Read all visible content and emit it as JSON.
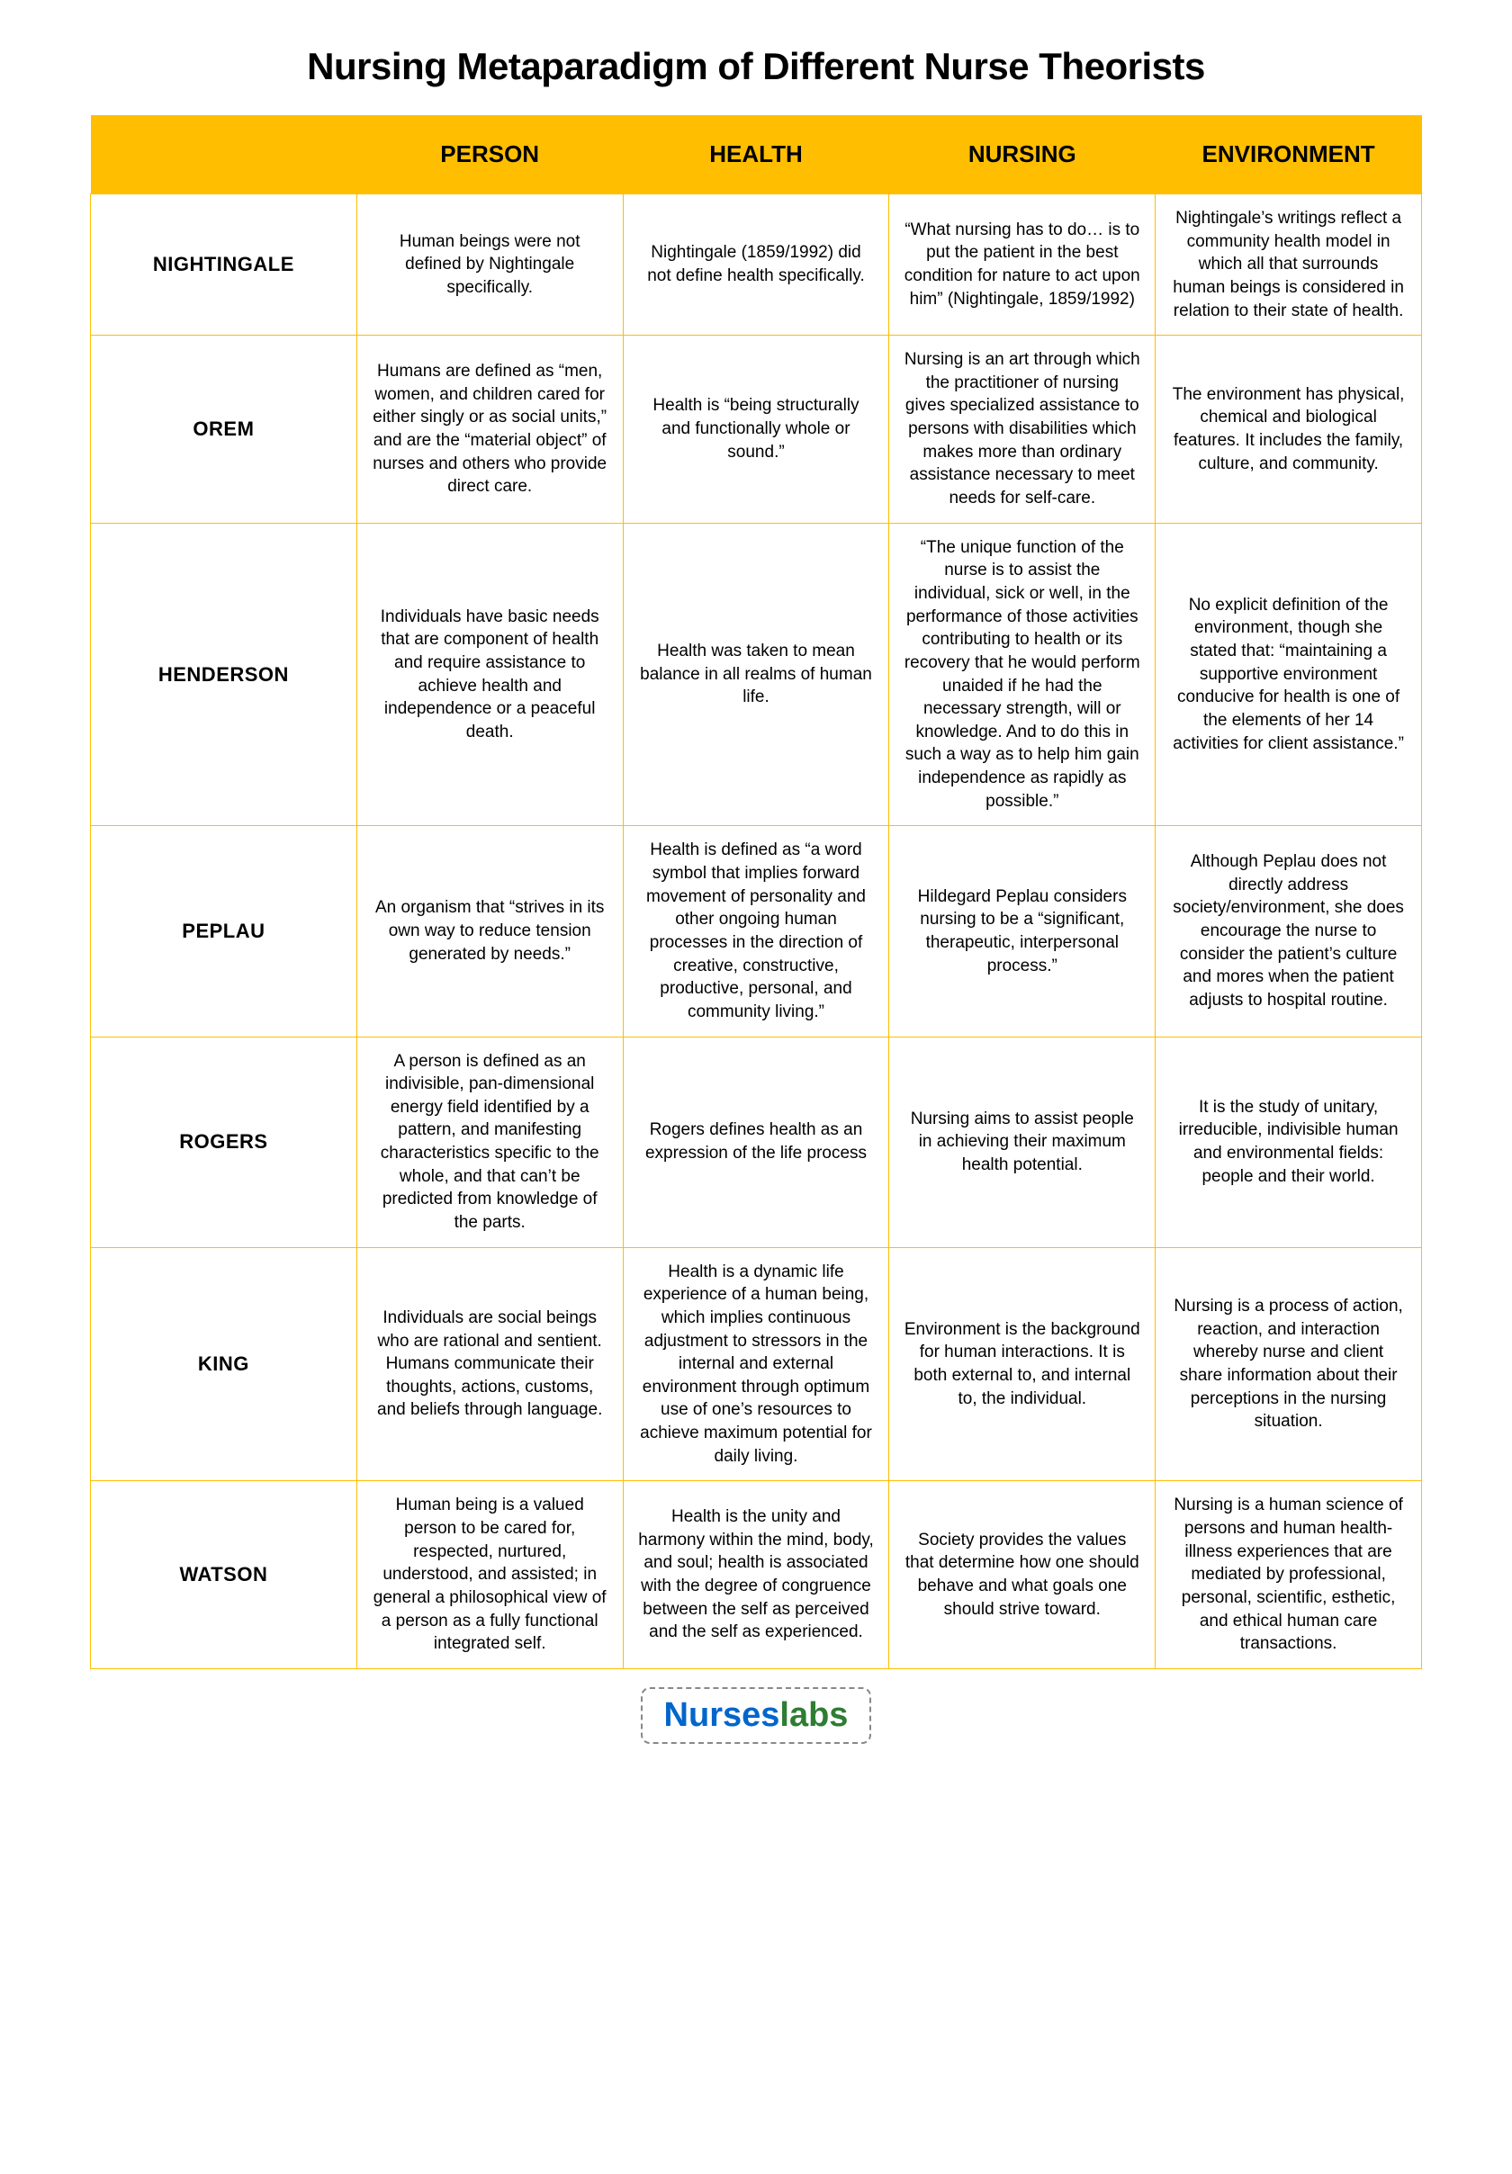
{
  "title": "Nursing Metaparadigm of Different Nurse Theorists",
  "columns": [
    "PERSON",
    "HEALTH",
    "NURSING",
    "ENVIRONMENT"
  ],
  "header_bg": "#ffbe00",
  "border_color": "#ffbe00",
  "text_color": "#000000",
  "title_fontsize": 42,
  "header_fontsize": 26,
  "rowhead_fontsize": 22,
  "cell_fontsize": 19,
  "rows": [
    {
      "theorist": "NIGHTINGALE",
      "person": "Human beings were not defined by Nightingale specifically.",
      "health": "Nightingale (1859/1992) did not define health specifically.",
      "nursing": "“What nursing has to do… is to put the patient in the best condition for nature to act upon him” (Nightingale, 1859/1992)",
      "environment": "Nightingale’s writings reflect a community health model in which all that surrounds human beings is considered in relation to their state of health."
    },
    {
      "theorist": "OREM",
      "person": "Humans are defined as “men, women, and children cared for either singly or as social units,” and are the “material object” of nurses and others who provide direct care.",
      "health": "Health is “being structurally and functionally whole or sound.”",
      "nursing": "Nursing is an art through which the practitioner of nursing gives specialized assistance to persons with disabilities which makes more than ordinary assistance necessary to meet needs for self-care.",
      "environment": "The environment has physical, chemical and biological features. It includes the family, culture, and community."
    },
    {
      "theorist": "HENDERSON",
      "person": "Individuals have basic needs that are component of health and require assistance to achieve health and independence or a peaceful death.",
      "health": "Health was taken to mean balance in all realms of human life.",
      "nursing": "“The unique function of the nurse is to assist the individual, sick or well, in the performance of those activities contributing to health or its recovery that he would perform unaided if he had the necessary strength, will or knowledge. And to do this in such a way as to help him gain independence as rapidly as possible.”",
      "environment": "No explicit definition of the environment, though she stated that: “maintaining a supportive environment conducive for health is one of the elements of her 14 activities for client assistance.”"
    },
    {
      "theorist": "PEPLAU",
      "person": "An organism that “strives in its own way to reduce tension generated by needs.”",
      "health": "Health is defined as “a word symbol that implies forward movement of personality and other ongoing human processes in the direction of creative, constructive, productive, personal, and community living.”",
      "nursing": "Hildegard\nPeplau considers nursing to be a “significant, therapeutic, interpersonal process.”",
      "environment": "Although Peplau does not directly address society/environment, she does encourage the nurse to consider the patient’s culture and mores when the patient adjusts to hospital routine."
    },
    {
      "theorist": "ROGERS",
      "person": "A person is defined as an indivisible, pan-dimensional energy field identified by a pattern, and manifesting characteristics specific to the whole, and that can’t be predicted from knowledge of the parts.",
      "health": "Rogers defines health as an expression of the life process",
      "nursing": "Nursing aims to assist people in achieving their maximum health potential.",
      "environment": "It is the study of unitary, irreducible, indivisible human and environmental fields: people and their world."
    },
    {
      "theorist": "KING",
      "person": "Individuals are social beings who are rational and sentient. Humans communicate their thoughts, actions, customs, and beliefs through language.",
      "health": "Health is a dynamic life experience of a human being, which implies continuous adjustment to stressors in the internal and external environment through optimum use of one’s resources to achieve maximum potential for daily living.",
      "nursing": "Environment is the background for human interactions. It is both external to, and internal to, the individual.",
      "environment": "Nursing is a process of action, reaction, and interaction whereby nurse and client share information about their perceptions in the nursing situation."
    },
    {
      "theorist": "WATSON",
      "person": "Human being is a valued person to be cared for, respected, nurtured, understood, and assisted; in general a philosophical view of a person as a fully functional integrated self.",
      "health": "Health is the unity and harmony within the mind, body, and soul; health is associated with the degree of congruence between the self as perceived and the self as experienced.",
      "nursing": "Society provides the values that determine how one should behave and what goals one should strive toward.",
      "environment": "Nursing is a human science of persons and human health-illness experiences that are mediated by professional, personal, scientific, esthetic, and ethical human care transactions."
    }
  ],
  "logo": {
    "part1": "Nurses",
    "part2": "labs",
    "color1": "#0066cc",
    "color2": "#2e7d32"
  }
}
